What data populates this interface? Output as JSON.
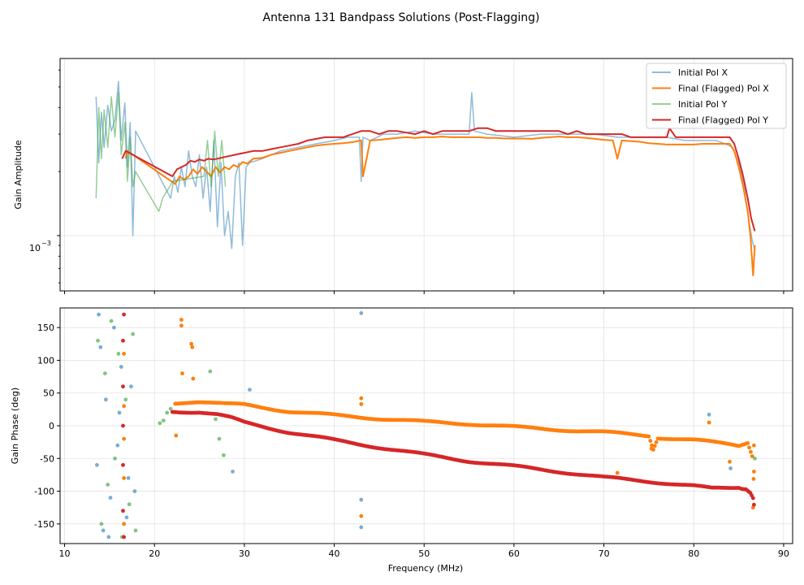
{
  "chart_data": [
    {
      "type": "line",
      "panel": "top",
      "title": "Antenna 131 Bandpass Solutions (Post-Flagging)",
      "xlabel": "",
      "ylabel": "Gain Amplitude",
      "yscale": "log",
      "xlim": [
        9.5,
        91
      ],
      "ylim": [
        0.00055,
        0.0068
      ],
      "y_tick_label_base": "10",
      "y_tick_label_exp": "−3",
      "grid": true,
      "legend_position": "top-right",
      "series": [
        {
          "name": "Initial Pol X",
          "color": "#1f77b4",
          "alpha": 0.5,
          "x": [
            13.5,
            13.8,
            14.1,
            14.4,
            14.8,
            15.2,
            15.6,
            16.0,
            16.3,
            16.7,
            17.0,
            17.3,
            17.6,
            17.9,
            21.8,
            22.2,
            22.6,
            23.0,
            23.4,
            23.8,
            24.2,
            24.6,
            25.0,
            25.4,
            25.8,
            26.2,
            26.6,
            27.0,
            27.4,
            27.8,
            28.2,
            28.6,
            29.0,
            29.4,
            29.8,
            30.2,
            30.6,
            32.0,
            34.0,
            36.0,
            38.0,
            40.0,
            41.5,
            42.8,
            43.0,
            43.2,
            44.0,
            45.5,
            47.0,
            49.0,
            51.0,
            53.0,
            55.0,
            55.3,
            55.6,
            57.0,
            60.0,
            63.0,
            66.0,
            69.0,
            71.5,
            73.0,
            75.0,
            77.0,
            79.0,
            81.0,
            82.5,
            83.5,
            84.3,
            85.0,
            85.6,
            86.1,
            86.5,
            86.8
          ],
          "y": [
            0.0045,
            0.0022,
            0.0038,
            0.0026,
            0.0041,
            0.0031,
            0.0035,
            0.0053,
            0.0028,
            0.0042,
            0.0021,
            0.0034,
            0.001,
            0.0031,
            0.0015,
            0.0019,
            0.0016,
            0.0021,
            0.0017,
            0.0025,
            0.0019,
            0.0017,
            0.0024,
            0.0015,
            0.0021,
            0.0013,
            0.0028,
            0.0011,
            0.0022,
            0.001,
            0.0013,
            0.00087,
            0.0019,
            0.0022,
            0.0009,
            0.0021,
            0.0022,
            0.0023,
            0.0025,
            0.0026,
            0.0027,
            0.0028,
            0.0029,
            0.0029,
            0.0018,
            0.0029,
            0.0028,
            0.003,
            0.003,
            0.0031,
            0.003,
            0.003,
            0.003,
            0.0047,
            0.0031,
            0.003,
            0.0029,
            0.003,
            0.003,
            0.003,
            0.0029,
            0.0029,
            0.0029,
            0.0029,
            0.0028,
            0.0028,
            0.0028,
            0.0027,
            0.0026,
            0.0022,
            0.0017,
            0.0012,
            0.00095,
            0.00085
          ]
        },
        {
          "name": "Final (Flagged) Pol X",
          "color": "#ff7f0e",
          "alpha": 1,
          "x": [
            16.8,
            17.0,
            22.3,
            22.8,
            23.3,
            23.8,
            24.3,
            24.8,
            25.3,
            25.8,
            26.3,
            26.8,
            27.3,
            27.8,
            28.3,
            28.8,
            29.3,
            29.8,
            30.3,
            31.0,
            32.0,
            33.0,
            34.0,
            35.0,
            36.0,
            37.0,
            38.0,
            39.0,
            40.0,
            41.0,
            42.0,
            43.0,
            43.2,
            44.0,
            45.0,
            46.0,
            47.0,
            48.0,
            49.0,
            50.0,
            51.0,
            52.0,
            53.0,
            54.0,
            55.0,
            56.0,
            57.0,
            58.0,
            59.0,
            60.0,
            61.0,
            62.0,
            63.0,
            64.0,
            65.0,
            66.0,
            67.0,
            68.0,
            69.0,
            70.0,
            71.0,
            71.5,
            72.0,
            73.0,
            74.0,
            75.0,
            76.0,
            77.0,
            78.0,
            79.0,
            80.0,
            81.0,
            82.0,
            83.0,
            84.0,
            84.5,
            85.0,
            85.5,
            86.0,
            86.3,
            86.6,
            86.8
          ],
          "y": [
            0.0023,
            0.0025,
            0.00175,
            0.0019,
            0.00183,
            0.0019,
            0.00205,
            0.00195,
            0.0021,
            0.002,
            0.0019,
            0.0021,
            0.00198,
            0.0021,
            0.00205,
            0.00215,
            0.0021,
            0.00222,
            0.00218,
            0.0023,
            0.00232,
            0.0024,
            0.00245,
            0.0025,
            0.00255,
            0.0026,
            0.00265,
            0.00268,
            0.0027,
            0.00272,
            0.00275,
            0.0028,
            0.0019,
            0.0028,
            0.00282,
            0.00285,
            0.00288,
            0.0029,
            0.00288,
            0.0029,
            0.0029,
            0.00292,
            0.0029,
            0.0029,
            0.0029,
            0.0029,
            0.00288,
            0.00288,
            0.00286,
            0.00286,
            0.00286,
            0.00285,
            0.00288,
            0.0029,
            0.00292,
            0.0029,
            0.0029,
            0.00288,
            0.00285,
            0.00282,
            0.0028,
            0.0023,
            0.0028,
            0.00278,
            0.00276,
            0.00272,
            0.0027,
            0.00268,
            0.00268,
            0.00268,
            0.00268,
            0.0027,
            0.0027,
            0.0027,
            0.0027,
            0.0025,
            0.0021,
            0.0017,
            0.0013,
            0.001,
            0.00065,
            0.0009
          ]
        },
        {
          "name": "Initial Pol Y",
          "color": "#2ca02c",
          "alpha": 0.5,
          "x": [
            13.5,
            13.8,
            14.1,
            14.4,
            14.8,
            15.2,
            15.6,
            16.0,
            16.3,
            16.7,
            17.0,
            17.3,
            17.6,
            17.9,
            20.5,
            20.9,
            21.3,
            21.7,
            22.0,
            25.5,
            25.9,
            26.3,
            26.7,
            27.1,
            27.5,
            27.9
          ],
          "y": [
            0.0015,
            0.004,
            0.0023,
            0.0039,
            0.0026,
            0.0045,
            0.0029,
            0.0047,
            0.0024,
            0.0034,
            0.0018,
            0.0029,
            0.0017,
            0.002,
            0.0013,
            0.0015,
            0.0016,
            0.0017,
            0.0018,
            0.0019,
            0.0028,
            0.0017,
            0.0031,
            0.0019,
            0.0028,
            0.0017
          ]
        },
        {
          "name": "Final (Flagged) Pol Y",
          "color": "#d62728",
          "alpha": 1,
          "x": [
            16.4,
            16.8,
            22.0,
            22.5,
            23.0,
            23.5,
            24.0,
            24.5,
            25.0,
            25.5,
            26.0,
            26.5,
            27.0,
            28.0,
            29.0,
            30.0,
            31.0,
            32.0,
            33.0,
            34.0,
            35.0,
            36.0,
            37.0,
            38.0,
            39.0,
            40.0,
            41.0,
            42.0,
            43.0,
            44.0,
            45.0,
            46.0,
            47.0,
            48.0,
            49.0,
            50.0,
            51.0,
            52.0,
            53.0,
            54.0,
            55.0,
            56.0,
            57.0,
            58.0,
            59.0,
            60.0,
            61.0,
            62.0,
            63.0,
            64.0,
            65.0,
            66.0,
            67.0,
            68.0,
            69.0,
            70.0,
            71.0,
            72.0,
            73.0,
            74.0,
            75.0,
            76.0,
            77.0,
            77.3,
            78.0,
            79.0,
            80.0,
            81.0,
            82.0,
            83.0,
            84.0,
            84.5,
            85.0,
            85.5,
            86.0,
            86.4,
            86.8
          ],
          "y": [
            0.0023,
            0.0025,
            0.0019,
            0.00205,
            0.0021,
            0.00215,
            0.00225,
            0.00222,
            0.00228,
            0.00225,
            0.0023,
            0.00228,
            0.0023,
            0.00235,
            0.0024,
            0.00245,
            0.0025,
            0.0025,
            0.00255,
            0.0026,
            0.00265,
            0.0027,
            0.0028,
            0.00285,
            0.0029,
            0.0029,
            0.0029,
            0.003,
            0.0031,
            0.0031,
            0.003,
            0.0031,
            0.0031,
            0.00305,
            0.003,
            0.0031,
            0.003,
            0.0031,
            0.0031,
            0.0031,
            0.0031,
            0.0032,
            0.0032,
            0.0031,
            0.0031,
            0.0031,
            0.0031,
            0.0031,
            0.0031,
            0.0031,
            0.0031,
            0.003,
            0.0031,
            0.003,
            0.003,
            0.003,
            0.003,
            0.003,
            0.0029,
            0.0029,
            0.0029,
            0.0029,
            0.0029,
            0.0032,
            0.0029,
            0.0029,
            0.0029,
            0.0029,
            0.0029,
            0.0029,
            0.0029,
            0.0027,
            0.0023,
            0.0019,
            0.0015,
            0.0012,
            0.00105
          ]
        }
      ]
    },
    {
      "type": "scatter",
      "panel": "bottom",
      "xlabel": "Frequency (MHz)",
      "ylabel": "Gain Phase (deg)",
      "xlim": [
        9.5,
        91
      ],
      "ylim": [
        -180,
        180
      ],
      "x_ticks": [
        10,
        20,
        30,
        40,
        50,
        60,
        70,
        80,
        90
      ],
      "y_ticks": [
        -150,
        -100,
        -50,
        0,
        50,
        100,
        150
      ],
      "grid": true,
      "series": [
        {
          "name": "Initial Pol X",
          "color": "#1f77b4",
          "alpha": 0.6,
          "points": [
            [
              13.6,
              -60
            ],
            [
              14.0,
              120
            ],
            [
              14.3,
              -160
            ],
            [
              14.6,
              40
            ],
            [
              15.1,
              -110
            ],
            [
              15.5,
              150
            ],
            [
              15.9,
              -30
            ],
            [
              16.3,
              90
            ],
            [
              16.9,
              -140
            ],
            [
              17.4,
              60
            ],
            [
              17.8,
              -100
            ],
            [
              13.8,
              170
            ],
            [
              14.9,
              -170
            ],
            [
              16.1,
              20
            ],
            [
              17.1,
              -80
            ],
            [
              43.0,
              172
            ],
            [
              43.0,
              -113
            ],
            [
              43.0,
              -155
            ],
            [
              81.7,
              17
            ],
            [
              84.1,
              -65
            ],
            [
              28.7,
              -70
            ],
            [
              30.6,
              55
            ]
          ]
        },
        {
          "name": "Final (Flagged) Pol X",
          "color": "#ff7f0e",
          "alpha": 1,
          "points": [
            [
              16.6,
              30
            ],
            [
              16.6,
              -20
            ],
            [
              16.6,
              -80
            ],
            [
              16.6,
              110
            ],
            [
              16.6,
              -150
            ],
            [
              22.4,
              -15
            ],
            [
              23.0,
              162
            ],
            [
              23.0,
              153
            ],
            [
              23.1,
              80
            ],
            [
              24.1,
              125
            ],
            [
              24.2,
              120
            ],
            [
              24.3,
              72
            ],
            [
              43.0,
              42
            ],
            [
              43.0,
              33
            ],
            [
              43.0,
              -138
            ],
            [
              71.5,
              -72
            ],
            [
              75.3,
              -35
            ],
            [
              81.7,
              5
            ],
            [
              84.0,
              -55
            ],
            [
              86.6,
              -125
            ],
            [
              86.7,
              -70
            ],
            [
              86.7,
              -30
            ]
          ],
          "trend_x": [
            22.3,
            25,
            28,
            30,
            32,
            35,
            40,
            45,
            50,
            55,
            60,
            65,
            70,
            75,
            75.5,
            76,
            80,
            84,
            85,
            86.0,
            86.5,
            86.8
          ],
          "trend_y": [
            35,
            37,
            33,
            32,
            28,
            22,
            16,
            11,
            6,
            3,
            -2,
            -6,
            -10,
            -15,
            -35,
            -18,
            -22,
            -28,
            -30,
            -25,
            -45,
            -115
          ]
        },
        {
          "name": "Initial Pol Y",
          "color": "#2ca02c",
          "alpha": 0.6,
          "points": [
            [
              13.7,
              130
            ],
            [
              14.1,
              -150
            ],
            [
              14.5,
              80
            ],
            [
              14.8,
              -90
            ],
            [
              15.2,
              160
            ],
            [
              15.6,
              -50
            ],
            [
              16.0,
              110
            ],
            [
              16.4,
              -170
            ],
            [
              16.8,
              40
            ],
            [
              17.2,
              -120
            ],
            [
              17.6,
              140
            ],
            [
              17.9,
              -160
            ],
            [
              20.6,
              4
            ],
            [
              21.0,
              8
            ],
            [
              21.4,
              20
            ],
            [
              21.8,
              26
            ],
            [
              26.2,
              83
            ],
            [
              26.8,
              10
            ],
            [
              27.2,
              -20
            ],
            [
              27.7,
              -45
            ],
            [
              86.8,
              -50
            ]
          ]
        },
        {
          "name": "Final (Flagged) Pol Y",
          "color": "#d62728",
          "alpha": 1,
          "points": [
            [
              16.5,
              60
            ],
            [
              16.5,
              0
            ],
            [
              16.5,
              -60
            ],
            [
              16.5,
              130
            ],
            [
              16.5,
              -130
            ],
            [
              16.6,
              -170
            ],
            [
              16.6,
              170
            ]
          ],
          "trend_x": [
            22.0,
            25,
            27,
            28.5,
            30,
            35,
            40,
            45,
            50,
            55,
            60,
            65,
            70,
            75,
            80,
            82,
            84,
            85,
            85.8,
            86.3,
            86.6,
            86.8
          ],
          "trend_y": [
            22,
            21,
            17,
            12,
            5,
            -10,
            -22,
            -33,
            -44,
            -54,
            -62,
            -70,
            -79,
            -85,
            -92,
            -96,
            -95,
            -94,
            -96,
            -102,
            -112,
            -128
          ]
        }
      ]
    }
  ]
}
